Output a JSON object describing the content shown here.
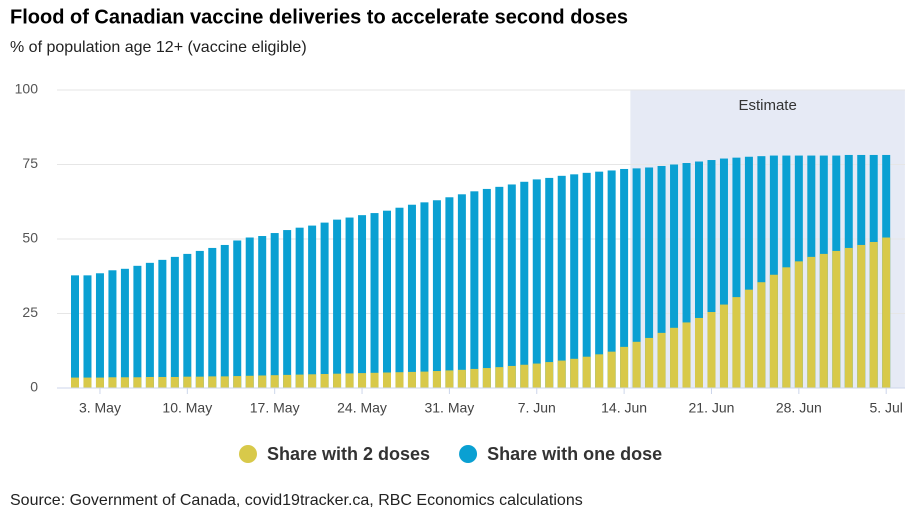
{
  "chart_data": {
    "type": "bar",
    "title": "Flood of Canadian vaccine deliveries to accelerate second doses",
    "subtitle": "% of population age 12+ (vaccine eligible)",
    "source": "Source: Government of Canada, covid19tracker.ca, RBC Economics calculations",
    "categories": [
      null,
      null,
      "3. May",
      null,
      null,
      null,
      null,
      null,
      null,
      "10. May",
      null,
      null,
      null,
      null,
      null,
      null,
      "17. May",
      null,
      null,
      null,
      null,
      null,
      null,
      "24. May",
      null,
      null,
      null,
      null,
      null,
      null,
      "31. May",
      null,
      null,
      null,
      null,
      null,
      null,
      "7. Jun",
      null,
      null,
      null,
      null,
      null,
      null,
      "14. Jun",
      null,
      null,
      null,
      null,
      null,
      null,
      "21. Jun",
      null,
      null,
      null,
      null,
      null,
      null,
      "28. Jun",
      null,
      null,
      null,
      null,
      null,
      null,
      "5. Jul"
    ],
    "series": [
      {
        "name": "Share with one dose",
        "color": "#0aa0d2",
        "values": [
          37.8,
          37.8,
          38.5,
          39.5,
          40,
          41,
          42,
          43,
          44,
          45,
          46,
          47,
          48,
          49.5,
          50.5,
          51,
          52,
          53,
          53.8,
          54.5,
          55.5,
          56.5,
          57.2,
          58,
          58.7,
          59.5,
          60.5,
          61.5,
          62.3,
          63,
          64,
          65,
          66,
          66.8,
          67.5,
          68.3,
          69.2,
          70,
          70.5,
          71.2,
          71.7,
          72.2,
          72.6,
          73,
          73.5,
          73.7,
          74,
          74.5,
          75,
          75.5,
          76,
          76.5,
          77,
          77.3,
          77.6,
          77.8,
          78,
          78,
          78,
          78,
          78,
          78,
          78.2,
          78.2,
          78.2,
          78.2
        ]
      },
      {
        "name": "Share with 2 doses",
        "color": "#d8c94a",
        "values": [
          3.5,
          3.5,
          3.5,
          3.6,
          3.6,
          3.6,
          3.7,
          3.7,
          3.7,
          3.8,
          3.8,
          3.9,
          3.9,
          4.0,
          4.1,
          4.2,
          4.3,
          4.4,
          4.5,
          4.6,
          4.7,
          4.8,
          4.9,
          5.0,
          5.1,
          5.2,
          5.3,
          5.4,
          5.5,
          5.7,
          5.9,
          6.1,
          6.4,
          6.7,
          7.0,
          7.4,
          7.8,
          8.2,
          8.7,
          9.2,
          9.8,
          10.5,
          11.3,
          12.2,
          13.8,
          15.5,
          16.8,
          18.5,
          20.2,
          22,
          23.5,
          25.5,
          28,
          30.5,
          33,
          35.5,
          38,
          40.5,
          42.5,
          44,
          45,
          46,
          47,
          48,
          49,
          50.5
        ]
      }
    ],
    "legend_order": [
      1,
      0
    ],
    "plot_band": {
      "label": "Estimate",
      "from": 44.5,
      "to": 66.5,
      "color": "#e6eaf5"
    },
    "ylim": [
      0,
      100
    ],
    "yticks": [
      0,
      25,
      50,
      75,
      100
    ],
    "grid": true
  }
}
